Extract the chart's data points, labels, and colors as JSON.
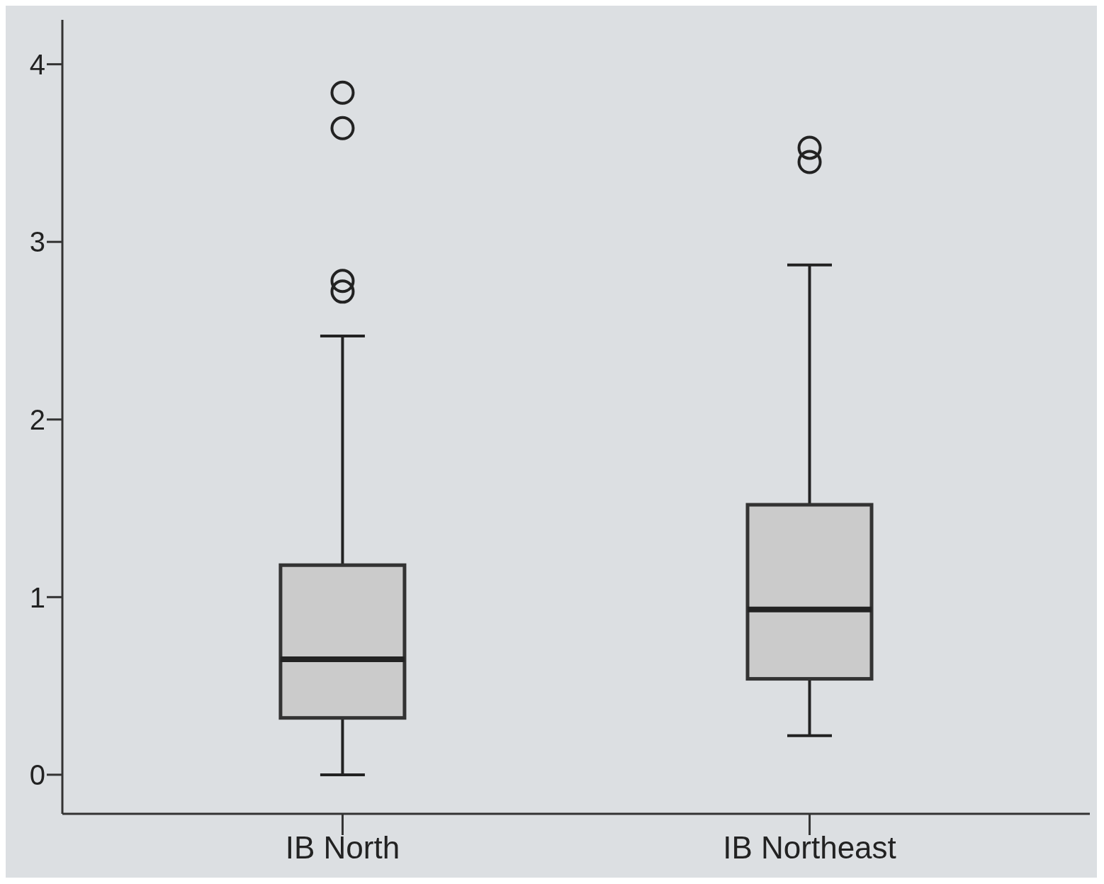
{
  "chart_data": {
    "type": "box",
    "categories": [
      "IB North",
      "IB Northeast"
    ],
    "boxes": [
      {
        "low": 0.0,
        "q1": 0.32,
        "median": 0.65,
        "q3": 1.18,
        "high": 2.47,
        "outliers": [
          2.72,
          2.78,
          3.64,
          3.84
        ]
      },
      {
        "low": 0.22,
        "q1": 0.54,
        "median": 0.93,
        "q3": 1.52,
        "high": 2.87,
        "outliers": [
          3.45,
          3.53
        ]
      }
    ],
    "color": "#cbcbcb",
    "ylim": [
      -0.22,
      4.25
    ],
    "yticks": [
      0,
      1,
      2,
      3,
      4
    ],
    "grid": false
  }
}
